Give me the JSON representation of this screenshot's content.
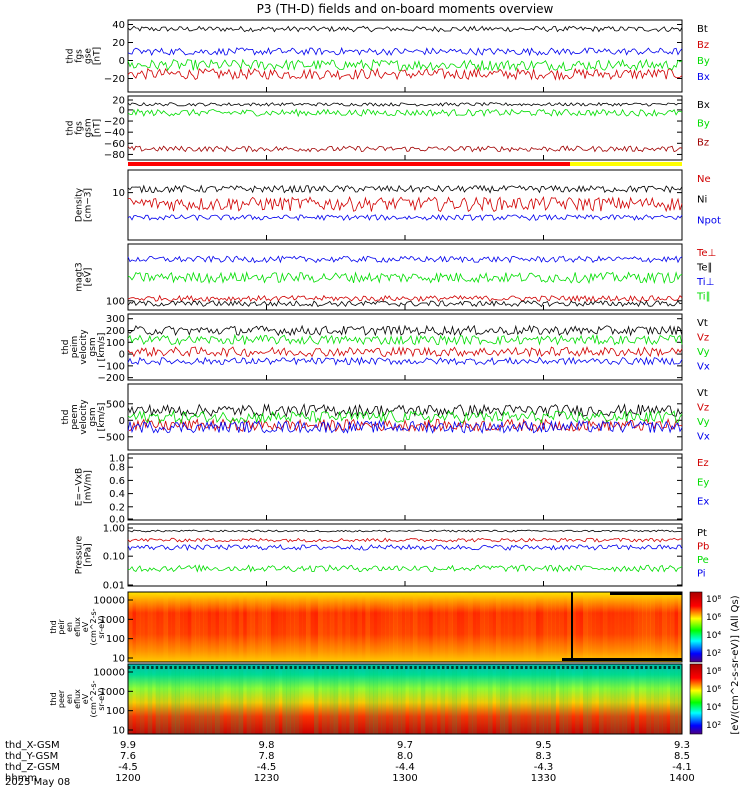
{
  "title": "P3 (TH-D) fields and on-board moments overview",
  "date_label": "2025 May 08",
  "orbit": {
    "rows": [
      {
        "name": "thd_X-GSM",
        "values": [
          "9.9",
          "9.8",
          "9.7",
          "9.5",
          "9.3"
        ]
      },
      {
        "name": "thd_Y-GSM",
        "values": [
          "7.6",
          "7.8",
          "8.0",
          "8.3",
          "8.5"
        ]
      },
      {
        "name": "thd_Z-GSM",
        "values": [
          "-4.5",
          "-4.5",
          "-4.4",
          "-4.3",
          "-4.1"
        ]
      },
      {
        "name": "hhmm",
        "values": [
          "1200",
          "1230",
          "1300",
          "1330",
          "1400"
        ]
      }
    ]
  },
  "colorbar": {
    "label": "[eV/(cm^2-s-sr-eV)] (All Qs)",
    "ticks_top": [
      "10⁸",
      "10⁶",
      "10⁴",
      "10²"
    ],
    "ticks_bottom": [
      "10⁸",
      "10⁶",
      "10⁴",
      "10²"
    ]
  },
  "chart_data": {
    "type": "line",
    "x": [
      "1200",
      "1230",
      "1300",
      "1330",
      "1400"
    ],
    "panels": [
      {
        "id": "fgs-gse",
        "ylabel": [
          "thd",
          "fgs",
          "gse",
          "[nT]"
        ],
        "yticks": [
          "40",
          "20",
          "0",
          "−20"
        ],
        "ylim": [
          -35,
          45
        ],
        "series": [
          {
            "name": "Bt",
            "color": "#000000",
            "level": 35,
            "noise": 3
          },
          {
            "name": "Bz",
            "color": "#d00000",
            "level": -15,
            "noise": 6
          },
          {
            "name": "By",
            "color": "#00dd00",
            "level": -5,
            "noise": 6
          },
          {
            "name": "Bx",
            "color": "#0000ee",
            "level": 10,
            "noise": 4
          }
        ]
      },
      {
        "id": "fgs-gsm",
        "ylabel": [
          "thd",
          "fgs",
          "gsm",
          "[nT]"
        ],
        "yticks": [
          "20",
          "0",
          "−20",
          "−40",
          "−60",
          "−80"
        ],
        "ylim": [
          -90,
          25
        ],
        "series": [
          {
            "name": "Bx",
            "color": "#000000",
            "level": 10,
            "noise": 3
          },
          {
            "name": "By",
            "color": "#00dd00",
            "level": -5,
            "noise": 6
          },
          {
            "name": "Bz",
            "color": "#a00000",
            "level": -70,
            "noise": 5
          }
        ]
      },
      {
        "id": "density",
        "ylabel": [
          "Density",
          "[cm−3]"
        ],
        "yticks": [
          "10"
        ],
        "ylim": [
          1,
          30
        ],
        "log": true,
        "series": [
          {
            "name": "Ne",
            "color": "#d00000",
            "level": 6,
            "noise": 2
          },
          {
            "name": "Ni",
            "color": "#000000",
            "level": 12,
            "noise": 2
          },
          {
            "name": "Npot",
            "color": "#0000ee",
            "level": 3,
            "noise": 0.4
          }
        ]
      },
      {
        "id": "temperature",
        "ylabel": [
          "magt3",
          "[eV]"
        ],
        "yticks": [
          "100"
        ],
        "ylim": [
          70,
          900
        ],
        "log": true,
        "series": [
          {
            "name": "Te⊥",
            "color": "#d00000",
            "level": 110,
            "noise": 12
          },
          {
            "name": "Te∥",
            "color": "#000000",
            "level": 90,
            "noise": 10
          },
          {
            "name": "Ti⊥",
            "color": "#0000ee",
            "level": 500,
            "noise": 60
          },
          {
            "name": "Ti∥",
            "color": "#00dd00",
            "level": 250,
            "noise": 50
          }
        ]
      },
      {
        "id": "peim-velocity",
        "ylabel": [
          "thd",
          "peim",
          "velocity",
          "gsm",
          "[km/s]"
        ],
        "yticks": [
          "300",
          "200",
          "100",
          "0",
          "−100",
          "−200"
        ],
        "ylim": [
          -220,
          340
        ],
        "series": [
          {
            "name": "Vt",
            "color": "#000000",
            "level": 200,
            "noise": 40
          },
          {
            "name": "Vz",
            "color": "#d00000",
            "level": 20,
            "noise": 40
          },
          {
            "name": "Vy",
            "color": "#00dd00",
            "level": 120,
            "noise": 40
          },
          {
            "name": "Vx",
            "color": "#0000ee",
            "level": -60,
            "noise": 30
          }
        ]
      },
      {
        "id": "peem-velocity",
        "ylabel": [
          "thd",
          "peem",
          "velocity",
          "gsm",
          "[km/s]"
        ],
        "yticks": [
          "500",
          "0",
          "−500"
        ],
        "ylim": [
          -900,
          1100
        ],
        "series": [
          {
            "name": "Vt",
            "color": "#000000",
            "level": 300,
            "noise": 180
          },
          {
            "name": "Vz",
            "color": "#d00000",
            "level": -150,
            "noise": 180
          },
          {
            "name": "Vy",
            "color": "#00dd00",
            "level": 100,
            "noise": 180
          },
          {
            "name": "Vx",
            "color": "#0000ee",
            "level": -200,
            "noise": 180
          }
        ]
      },
      {
        "id": "efield",
        "ylabel": [
          "E=−VxB",
          "[mV/m]"
        ],
        "yticks": [
          "1.0",
          "0.8",
          "0.6",
          "0.4",
          "0.2",
          "0.0"
        ],
        "ylim": [
          0,
          1
        ],
        "series": [
          {
            "name": "Ez",
            "color": "#d00000",
            "empty": true
          },
          {
            "name": "Ey",
            "color": "#00dd00",
            "empty": true
          },
          {
            "name": "Ex",
            "color": "#0000ee",
            "empty": true
          }
        ]
      },
      {
        "id": "pressure",
        "ylabel": [
          "Pressure",
          "[nPa]"
        ],
        "yticks": [
          "1.00",
          "0.10",
          "0.01"
        ],
        "ylim": [
          0.01,
          1.2
        ],
        "log": true,
        "series": [
          {
            "name": "Pt",
            "color": "#000000",
            "level": 0.7,
            "noise": 0.05
          },
          {
            "name": "Pb",
            "color": "#d00000",
            "level": 0.35,
            "noise": 0.05
          },
          {
            "name": "Pe",
            "color": "#00dd00",
            "level": 0.04,
            "noise": 0.01
          },
          {
            "name": "Pi",
            "color": "#0000ee",
            "level": 0.2,
            "noise": 0.04
          }
        ]
      }
    ],
    "spectrograms": [
      {
        "id": "peir-eflux",
        "ylabel": [
          "thd",
          "peir",
          "en",
          "eflux",
          "eV",
          "(cm^2-s-",
          "sr-eV)"
        ],
        "yticks": [
          "10000",
          "1000",
          "100",
          "10"
        ]
      },
      {
        "id": "peer-eflux",
        "ylabel": [
          "thd",
          "peer",
          "en",
          "eflux",
          "eV",
          "(cm^2-s-",
          "sr-eV)"
        ],
        "yticks": [
          "10000",
          "1000",
          "100",
          "10"
        ]
      }
    ],
    "mode_bar": [
      "#ff0000",
      "#ffff00"
    ]
  }
}
